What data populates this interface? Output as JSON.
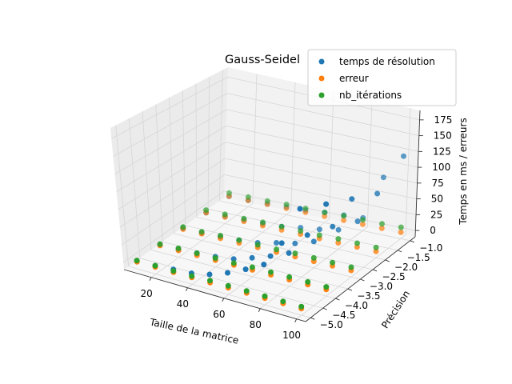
{
  "chart_data": {
    "type": "scatter",
    "projection": "3d",
    "title": "Gauss-Seidel",
    "xlabel": "Taille de la matrice",
    "ylabel": "Précision",
    "zlabel": "Temps en ms / erreurs",
    "xlim": [
      5,
      105
    ],
    "ylim": [
      -5.2,
      -0.8
    ],
    "zlim": [
      -10,
      190
    ],
    "x_ticks": [
      "20",
      "40",
      "60",
      "80",
      "100"
    ],
    "y_ticks": [
      "−5.0",
      "−4.5",
      "−4.0",
      "−3.5",
      "−3.0",
      "−2.5",
      "−2.0",
      "−1.5",
      "−1.0"
    ],
    "z_ticks": [
      "0",
      "25",
      "50",
      "75",
      "100",
      "125",
      "150",
      "175"
    ],
    "grid": true,
    "legend_position": "top-right",
    "colors": {
      "temps de résolution": "#1f77b4",
      "erreur": "#ff7f0e",
      "nb_itérations": "#2ca02c"
    },
    "series": [
      {
        "name": "temps de résolution",
        "points": [
          [
            10,
            -1,
            0
          ],
          [
            10,
            -2,
            0
          ],
          [
            10,
            -3,
            1
          ],
          [
            10,
            -4,
            1
          ],
          [
            10,
            -5,
            1
          ],
          [
            20,
            -1,
            0
          ],
          [
            20,
            -2,
            1
          ],
          [
            20,
            -3,
            1
          ],
          [
            20,
            -4,
            1
          ],
          [
            20,
            -5,
            2
          ],
          [
            30,
            -1,
            1
          ],
          [
            30,
            -2,
            2
          ],
          [
            30,
            -3,
            2
          ],
          [
            30,
            -4,
            3
          ],
          [
            30,
            -5,
            4
          ],
          [
            40,
            -1,
            2
          ],
          [
            40,
            -2,
            3
          ],
          [
            40,
            -3,
            4
          ],
          [
            40,
            -4,
            5
          ],
          [
            40,
            -5,
            6
          ],
          [
            50,
            -1,
            3
          ],
          [
            50,
            -2,
            5
          ],
          [
            50,
            -3,
            7
          ],
          [
            50,
            -4,
            9
          ],
          [
            50,
            -5,
            12
          ],
          [
            60,
            -1,
            6
          ],
          [
            60,
            -2,
            10
          ],
          [
            60,
            -3,
            14
          ],
          [
            60,
            -4,
            18
          ],
          [
            60,
            -5,
            22
          ],
          [
            70,
            -1,
            8
          ],
          [
            70,
            -2,
            14
          ],
          [
            70,
            -3,
            20
          ],
          [
            70,
            -4,
            28
          ],
          [
            70,
            -5,
            35
          ],
          [
            80,
            -1,
            10
          ],
          [
            80,
            -2,
            20
          ],
          [
            80,
            -3,
            30
          ],
          [
            80,
            -4,
            40
          ],
          [
            80,
            -5,
            50
          ],
          [
            90,
            -1,
            80
          ],
          [
            90,
            -2,
            40
          ],
          [
            90,
            -3,
            60
          ],
          [
            90,
            -4,
            75
          ],
          [
            90,
            -5,
            90
          ],
          [
            100,
            -1,
            120
          ],
          [
            100,
            -2,
            90
          ],
          [
            100,
            -3,
            110
          ],
          [
            100,
            -4,
            130
          ],
          [
            100,
            -5,
            150
          ]
        ]
      },
      {
        "name": "erreur",
        "points": [
          [
            10,
            -1,
            0
          ],
          [
            10,
            -2,
            0
          ],
          [
            10,
            -3,
            0
          ],
          [
            10,
            -4,
            0
          ],
          [
            10,
            -5,
            0
          ],
          [
            20,
            -1,
            0
          ],
          [
            20,
            -2,
            0
          ],
          [
            20,
            -3,
            0
          ],
          [
            20,
            -4,
            0
          ],
          [
            20,
            -5,
            0
          ],
          [
            30,
            -1,
            0
          ],
          [
            30,
            -2,
            0
          ],
          [
            30,
            -3,
            0
          ],
          [
            30,
            -4,
            0
          ],
          [
            30,
            -5,
            0
          ],
          [
            40,
            -1,
            0
          ],
          [
            40,
            -2,
            0
          ],
          [
            40,
            -3,
            0
          ],
          [
            40,
            -4,
            0
          ],
          [
            40,
            -5,
            0
          ],
          [
            50,
            -1,
            0
          ],
          [
            50,
            -2,
            0
          ],
          [
            50,
            -3,
            0
          ],
          [
            50,
            -4,
            0
          ],
          [
            50,
            -5,
            0
          ],
          [
            60,
            -1,
            0
          ],
          [
            60,
            -2,
            0
          ],
          [
            60,
            -3,
            0
          ],
          [
            60,
            -4,
            0
          ],
          [
            60,
            -5,
            0
          ],
          [
            70,
            -1,
            0
          ],
          [
            70,
            -2,
            0
          ],
          [
            70,
            -3,
            0
          ],
          [
            70,
            -4,
            0
          ],
          [
            70,
            -5,
            0
          ],
          [
            80,
            -1,
            0
          ],
          [
            80,
            -2,
            0
          ],
          [
            80,
            -3,
            0
          ],
          [
            80,
            -4,
            0
          ],
          [
            80,
            -5,
            0
          ],
          [
            90,
            -1,
            0
          ],
          [
            90,
            -2,
            0
          ],
          [
            90,
            -3,
            0
          ],
          [
            90,
            -4,
            0
          ],
          [
            90,
            -5,
            0
          ],
          [
            100,
            -1,
            0
          ],
          [
            100,
            -2,
            0
          ],
          [
            100,
            -3,
            0
          ],
          [
            100,
            -4,
            0
          ],
          [
            100,
            -5,
            0
          ]
        ]
      },
      {
        "name": "nb_itérations",
        "points": [
          [
            10,
            -1,
            5
          ],
          [
            10,
            -2,
            4
          ],
          [
            10,
            -3,
            3
          ],
          [
            10,
            -4,
            2
          ],
          [
            10,
            -5,
            2
          ],
          [
            20,
            -1,
            5
          ],
          [
            20,
            -2,
            4
          ],
          [
            20,
            -3,
            3
          ],
          [
            20,
            -4,
            3
          ],
          [
            20,
            -5,
            2
          ],
          [
            30,
            -1,
            5
          ],
          [
            30,
            -2,
            4
          ],
          [
            30,
            -3,
            4
          ],
          [
            30,
            -4,
            3
          ],
          [
            30,
            -5,
            2
          ],
          [
            40,
            -1,
            6
          ],
          [
            40,
            -2,
            5
          ],
          [
            40,
            -3,
            4
          ],
          [
            40,
            -4,
            3
          ],
          [
            40,
            -5,
            2
          ],
          [
            50,
            -1,
            6
          ],
          [
            50,
            -2,
            5
          ],
          [
            50,
            -3,
            4
          ],
          [
            50,
            -4,
            3
          ],
          [
            50,
            -5,
            3
          ],
          [
            60,
            -1,
            6
          ],
          [
            60,
            -2,
            5
          ],
          [
            60,
            -3,
            4
          ],
          [
            60,
            -4,
            4
          ],
          [
            60,
            -5,
            3
          ],
          [
            70,
            -1,
            7
          ],
          [
            70,
            -2,
            5
          ],
          [
            70,
            -3,
            5
          ],
          [
            70,
            -4,
            4
          ],
          [
            70,
            -5,
            3
          ],
          [
            80,
            -1,
            7
          ],
          [
            80,
            -2,
            6
          ],
          [
            80,
            -3,
            5
          ],
          [
            80,
            -4,
            4
          ],
          [
            80,
            -5,
            3
          ],
          [
            90,
            -1,
            7
          ],
          [
            90,
            -2,
            6
          ],
          [
            90,
            -3,
            5
          ],
          [
            90,
            -4,
            4
          ],
          [
            90,
            -5,
            3
          ],
          [
            100,
            -1,
            8
          ],
          [
            100,
            -2,
            6
          ],
          [
            100,
            -3,
            5
          ],
          [
            100,
            -4,
            4
          ],
          [
            100,
            -5,
            3
          ]
        ]
      }
    ]
  }
}
